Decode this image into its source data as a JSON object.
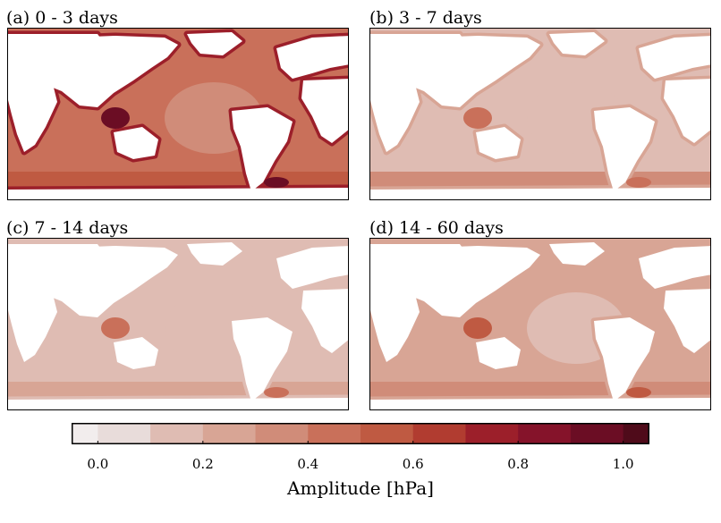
{
  "panels": [
    {
      "title": "(a) 0 - 3 days",
      "ocean_level": 0.45,
      "coast_level": 0.75,
      "hotspot_level": 1.0,
      "south_band_level": 0.55
    },
    {
      "title": "(b) 3 - 7 days",
      "ocean_level": 0.2,
      "coast_level": 0.3,
      "hotspot_level": 0.45,
      "south_band_level": 0.35
    },
    {
      "title": "(c) 7 - 14 days",
      "ocean_level": 0.18,
      "coast_level": 0.2,
      "hotspot_level": 0.45,
      "south_band_level": 0.3
    },
    {
      "title": "(d) 14 - 60 days",
      "ocean_level": 0.25,
      "coast_level": 0.3,
      "hotspot_level": 0.55,
      "south_band_level": 0.4
    }
  ],
  "colorbar": {
    "label": "Amplitude [hPa]",
    "ticks": [
      "0.0",
      "0.2",
      "0.4",
      "0.6",
      "0.8",
      "1.0"
    ],
    "tick_values": [
      0.0,
      0.2,
      0.4,
      0.6,
      0.8,
      1.0
    ],
    "min": -0.05,
    "max": 1.05,
    "boundaries": [
      -0.05,
      0.0,
      0.1,
      0.2,
      0.3,
      0.4,
      0.5,
      0.6,
      0.7,
      0.8,
      0.9,
      1.0,
      1.05
    ],
    "colors": [
      "#f2eded",
      "#e8dcda",
      "#dfbcb3",
      "#d8a595",
      "#d08c79",
      "#c9705a",
      "#bf5a42",
      "#b13c30",
      "#9c1f2a",
      "#85132a",
      "#6b0d24",
      "#4f0b1a"
    ]
  }
}
